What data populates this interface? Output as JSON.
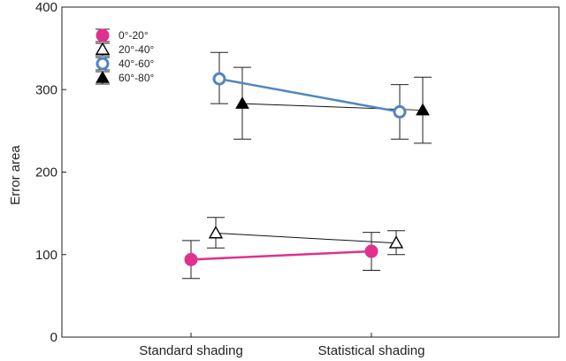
{
  "chart_data": {
    "type": "line",
    "title": "",
    "xlabel": "",
    "ylabel": "Error area",
    "categories": [
      "Standard shading",
      "Statistical shading"
    ],
    "ylim": [
      0,
      400
    ],
    "yticks": [
      0,
      100,
      200,
      300,
      400
    ],
    "grid": false,
    "legend_position": "top-left",
    "series": [
      {
        "name": "0°-20°",
        "marker": "filled-circle",
        "color": "#e0318e",
        "values": [
          94,
          104
        ],
        "err_low": [
          71,
          81
        ],
        "err_high": [
          117,
          127
        ]
      },
      {
        "name": "20°-40°",
        "marker": "open-triangle",
        "color": "#111111",
        "values": [
          126,
          114
        ],
        "err_low": [
          108,
          100
        ],
        "err_high": [
          145,
          129
        ]
      },
      {
        "name": "40°-60°",
        "marker": "open-circle",
        "color": "#4f86c0",
        "values": [
          313,
          273
        ],
        "err_low": [
          283,
          240
        ],
        "err_high": [
          345,
          306
        ]
      },
      {
        "name": "60°-80°",
        "marker": "filled-triangle",
        "color": "#111111",
        "values": [
          283,
          275
        ],
        "err_low": [
          240,
          235
        ],
        "err_high": [
          327,
          315
        ]
      }
    ]
  }
}
